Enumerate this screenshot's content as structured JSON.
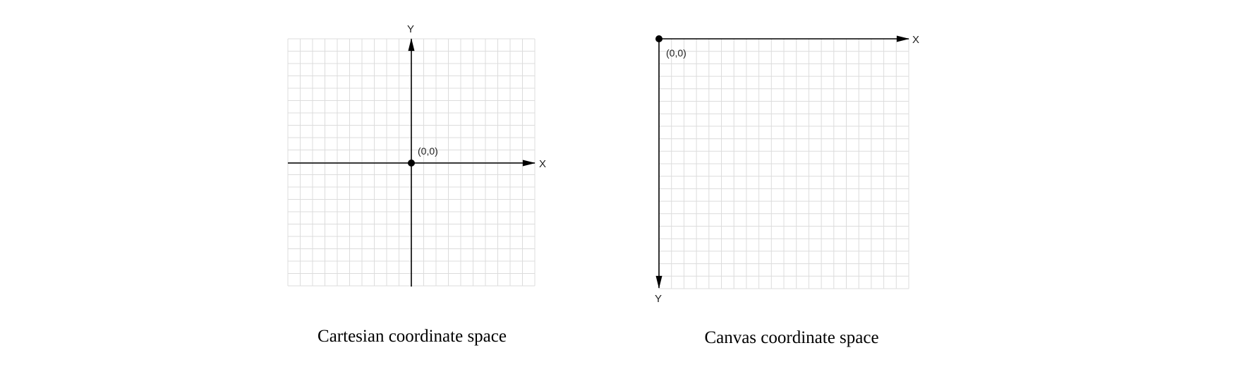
{
  "colors": {
    "grid": "#dcdcdc",
    "axis": "#000000",
    "text": "#222222",
    "background": "#ffffff"
  },
  "diagrams": [
    {
      "id": "cartesian",
      "x_axis_label": "X",
      "y_axis_label": "Y",
      "origin_label": "(0,0)",
      "caption": "Cartesian coordinate space",
      "grid_cells": 20
    },
    {
      "id": "canvas",
      "x_axis_label": "X",
      "y_axis_label": "Y",
      "origin_label": "(0,0)",
      "caption": "Canvas coordinate space",
      "grid_cells": 20
    }
  ]
}
